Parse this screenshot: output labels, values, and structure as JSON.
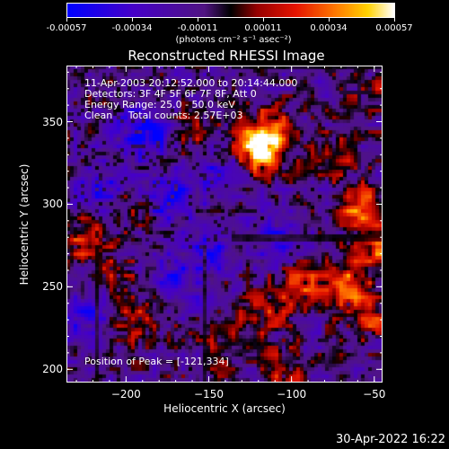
{
  "chart_data": {
    "type": "heatmap",
    "title": "Reconstructed RHESSI Image",
    "xlabel": "Heliocentric X (arcsec)",
    "ylabel": "Heliocentric Y (arcsec)",
    "xlim": [
      -236,
      -45
    ],
    "ylim": [
      192,
      384
    ],
    "xticks": [
      -200,
      -150,
      -100,
      -50
    ],
    "yticks": [
      200,
      250,
      300,
      350
    ],
    "colorbar": {
      "range": [
        -0.00057,
        0.00057
      ],
      "ticks": [
        "-0.00057",
        "-0.00034",
        "-0.00011",
        "0.00011",
        "0.00034",
        "0.00057"
      ],
      "units": "(photons cm⁻² s⁻¹ asec⁻²)"
    },
    "annotations": [
      "11-Apr-2003 20:12:52.000 to 20:14:44.000",
      "Detectors: 3F 4F 5F 6F 7F 8F, Att 0",
      "Energy Range: 25.0 - 50.0 keV",
      "Clean     Total counts: 2.57E+03"
    ],
    "peak_label": "Position of Peak = [-121,334]",
    "hot_spots": [
      {
        "x": -121,
        "y": 334,
        "v": 1.0
      },
      {
        "x": -115,
        "y": 345,
        "v": 0.7
      },
      {
        "x": -60,
        "y": 300,
        "v": 0.75
      },
      {
        "x": -48,
        "y": 275,
        "v": 0.7
      },
      {
        "x": -70,
        "y": 255,
        "v": 0.65
      },
      {
        "x": -95,
        "y": 250,
        "v": 0.55
      },
      {
        "x": -120,
        "y": 235,
        "v": 0.5
      },
      {
        "x": -55,
        "y": 235,
        "v": 0.6
      },
      {
        "x": -225,
        "y": 280,
        "v": 0.55
      },
      {
        "x": -200,
        "y": 300,
        "v": 0.35
      },
      {
        "x": -195,
        "y": 230,
        "v": 0.45
      },
      {
        "x": -210,
        "y": 258,
        "v": 0.4
      },
      {
        "x": -160,
        "y": 345,
        "v": 0.35
      },
      {
        "x": -105,
        "y": 200,
        "v": 0.45
      },
      {
        "x": -140,
        "y": 215,
        "v": 0.35
      },
      {
        "x": -75,
        "y": 330,
        "v": 0.4
      },
      {
        "x": -50,
        "y": 365,
        "v": 0.3
      }
    ],
    "cold_spots": [
      {
        "x": -190,
        "y": 345,
        "v": -0.8
      },
      {
        "x": -215,
        "y": 310,
        "v": -0.6
      },
      {
        "x": -175,
        "y": 305,
        "v": -0.65
      },
      {
        "x": -150,
        "y": 275,
        "v": -0.6
      },
      {
        "x": -225,
        "y": 235,
        "v": -0.55
      },
      {
        "x": -170,
        "y": 255,
        "v": -0.5
      },
      {
        "x": -110,
        "y": 280,
        "v": -0.45
      },
      {
        "x": -145,
        "y": 320,
        "v": -0.5
      }
    ]
  },
  "footer": {
    "timestamp": "30-Apr-2022 16:22"
  }
}
